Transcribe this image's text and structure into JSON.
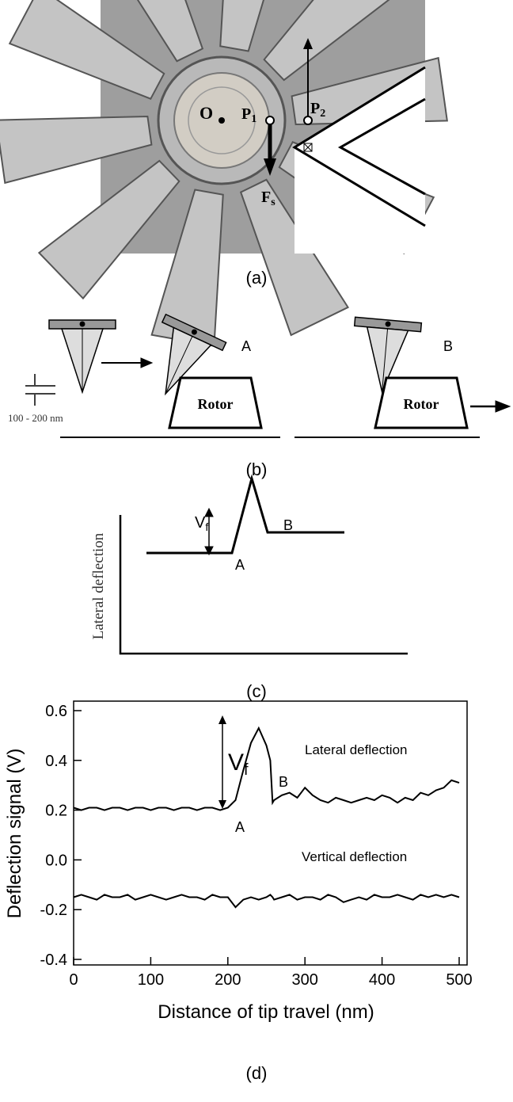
{
  "panel_a": {
    "point_o": "O",
    "point_p1": {
      "text": "P",
      "sub": "1"
    },
    "point_p2": {
      "text": "P",
      "sub": "2"
    },
    "force": {
      "text": "F",
      "sub": "s"
    },
    "caption": "(a)"
  },
  "panel_b": {
    "gap_label": "100 - 200 nm",
    "rotor_a": "Rotor",
    "rotor_b": "Rotor",
    "label_a": "A",
    "label_b": "B",
    "caption": "(b)"
  },
  "panel_c": {
    "ylabel": "Lateral deflection",
    "vf": {
      "text": "V",
      "sub": "f"
    },
    "label_a": "A",
    "label_b": "B",
    "caption": "(c)"
  },
  "chart_data": {
    "type": "line",
    "xlabel": "Distance of tip travel (nm)",
    "ylabel": "Deflection signal (V)",
    "x": [
      0,
      10,
      20,
      30,
      40,
      50,
      60,
      70,
      80,
      90,
      100,
      110,
      120,
      130,
      140,
      150,
      160,
      170,
      180,
      190,
      200,
      210,
      220,
      230,
      240,
      250,
      255,
      258,
      260,
      270,
      280,
      290,
      300,
      310,
      320,
      330,
      340,
      350,
      360,
      370,
      380,
      390,
      400,
      410,
      420,
      430,
      440,
      450,
      460,
      470,
      480,
      490,
      500
    ],
    "series": [
      {
        "name": "Lateral deflection",
        "color": "#000000",
        "values": [
          0.21,
          0.2,
          0.21,
          0.21,
          0.2,
          0.21,
          0.21,
          0.2,
          0.21,
          0.21,
          0.2,
          0.21,
          0.21,
          0.2,
          0.21,
          0.21,
          0.2,
          0.21,
          0.21,
          0.2,
          0.21,
          0.24,
          0.36,
          0.47,
          0.53,
          0.46,
          0.4,
          0.23,
          0.24,
          0.26,
          0.27,
          0.25,
          0.29,
          0.26,
          0.24,
          0.23,
          0.25,
          0.24,
          0.23,
          0.24,
          0.25,
          0.24,
          0.26,
          0.25,
          0.23,
          0.25,
          0.24,
          0.27,
          0.26,
          0.28,
          0.29,
          0.32,
          0.31
        ]
      },
      {
        "name": "Vertical deflection",
        "color": "#000000",
        "values": [
          -0.15,
          -0.14,
          -0.15,
          -0.16,
          -0.14,
          -0.15,
          -0.15,
          -0.14,
          -0.16,
          -0.15,
          -0.14,
          -0.15,
          -0.16,
          -0.15,
          -0.14,
          -0.15,
          -0.15,
          -0.16,
          -0.14,
          -0.15,
          -0.15,
          -0.19,
          -0.16,
          -0.15,
          -0.16,
          -0.15,
          -0.14,
          -0.15,
          -0.16,
          -0.15,
          -0.14,
          -0.16,
          -0.15,
          -0.15,
          -0.16,
          -0.14,
          -0.15,
          -0.17,
          -0.16,
          -0.15,
          -0.16,
          -0.14,
          -0.15,
          -0.15,
          -0.14,
          -0.15,
          -0.16,
          -0.14,
          -0.15,
          -0.14,
          -0.15,
          -0.14,
          -0.15
        ]
      }
    ],
    "xlim": [
      0,
      500
    ],
    "ylim": [
      -0.4,
      0.6
    ],
    "xticks": [
      0,
      100,
      200,
      300,
      400,
      500
    ],
    "yticks": [
      -0.4,
      -0.2,
      {
        "value": 0,
        "label": "0.0"
      },
      0.2,
      0.4,
      0.6
    ],
    "annotations": {
      "label_a": "A",
      "label_b": "B",
      "vf": {
        "text": "V",
        "sub": "f"
      }
    },
    "caption": "(d)"
  }
}
